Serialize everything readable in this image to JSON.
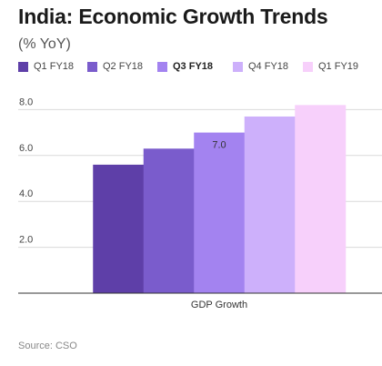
{
  "title": "India: Economic Growth Trends",
  "subtitle": "(% YoY)",
  "source": "Source: CSO",
  "legend": [
    {
      "label": "Q1 FY18",
      "color": "#5e3fa8",
      "bold": false
    },
    {
      "label": "Q2 FY18",
      "color": "#7a5ccc",
      "bold": false
    },
    {
      "label": "Q3 FY18",
      "color": "#a383f0",
      "bold": true
    },
    {
      "label": "Q4 FY18",
      "color": "#cdb0fb",
      "bold": false
    },
    {
      "label": "Q1 FY19",
      "color": "#f7d0fb",
      "bold": false
    }
  ],
  "chart_data": {
    "type": "bar",
    "categories": [
      "GDP Growth"
    ],
    "series": [
      {
        "name": "Q1 FY18",
        "values": [
          5.6
        ],
        "color": "#5e3fa8"
      },
      {
        "name": "Q2 FY18",
        "values": [
          6.3
        ],
        "color": "#7a5ccc"
      },
      {
        "name": "Q3 FY18",
        "values": [
          7.0
        ],
        "color": "#a383f0"
      },
      {
        "name": "Q4 FY18",
        "values": [
          7.7
        ],
        "color": "#cdb0fb"
      },
      {
        "name": "Q1 FY19",
        "values": [
          8.2
        ],
        "color": "#f7d0fb"
      }
    ],
    "data_labels": [
      {
        "series": "Q3 FY18",
        "text": "7.0"
      }
    ],
    "yticks": [
      "2.0",
      "4.0",
      "6.0",
      "8.0"
    ],
    "ylim": [
      0,
      8.5
    ],
    "title": "India: Economic Growth Trends",
    "ylabel": "(% YoY)",
    "xlabel": "",
    "grid": true,
    "legend_position": "top"
  }
}
